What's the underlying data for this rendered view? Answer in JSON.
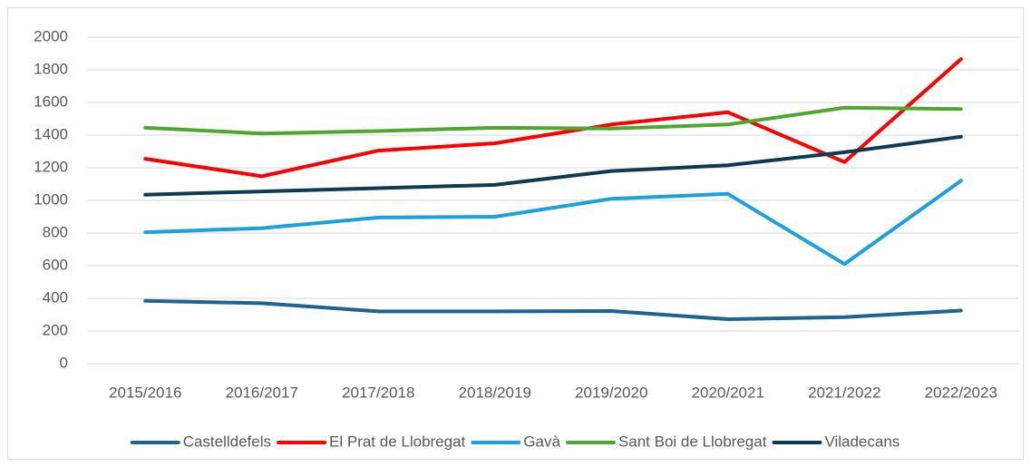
{
  "chart_data": {
    "type": "line",
    "categories": [
      "2015/2016",
      "2016/2017",
      "2017/2018",
      "2018/2019",
      "2019/2020",
      "2020/2021",
      "2021/2022",
      "2022/2023"
    ],
    "series": [
      {
        "name": "Castelldefels",
        "color": "#1f6391",
        "values": [
          385,
          370,
          320,
          320,
          322,
          272,
          285,
          325
        ]
      },
      {
        "name": "El Prat de Llobregat",
        "color": "#ff0000",
        "values": [
          1255,
          1148,
          1305,
          1350,
          1465,
          1540,
          1235,
          1865
        ]
      },
      {
        "name": "Gavà",
        "color": "#1ba1dd",
        "values": [
          805,
          830,
          895,
          900,
          1010,
          1040,
          610,
          1120
        ]
      },
      {
        "name": "Sant Boi de Llobregat",
        "color": "#4ea72e",
        "values": [
          1445,
          1410,
          1425,
          1445,
          1440,
          1465,
          1568,
          1560
        ]
      },
      {
        "name": "Viladecans",
        "color": "#0e3a52",
        "values": [
          1035,
          1055,
          1075,
          1095,
          1180,
          1215,
          1295,
          1390
        ]
      }
    ],
    "ylim": [
      0,
      2000
    ],
    "yticks": [
      0,
      200,
      400,
      600,
      800,
      1000,
      1200,
      1400,
      1600,
      1800,
      2000
    ],
    "grid": true,
    "legend": "bottom"
  }
}
